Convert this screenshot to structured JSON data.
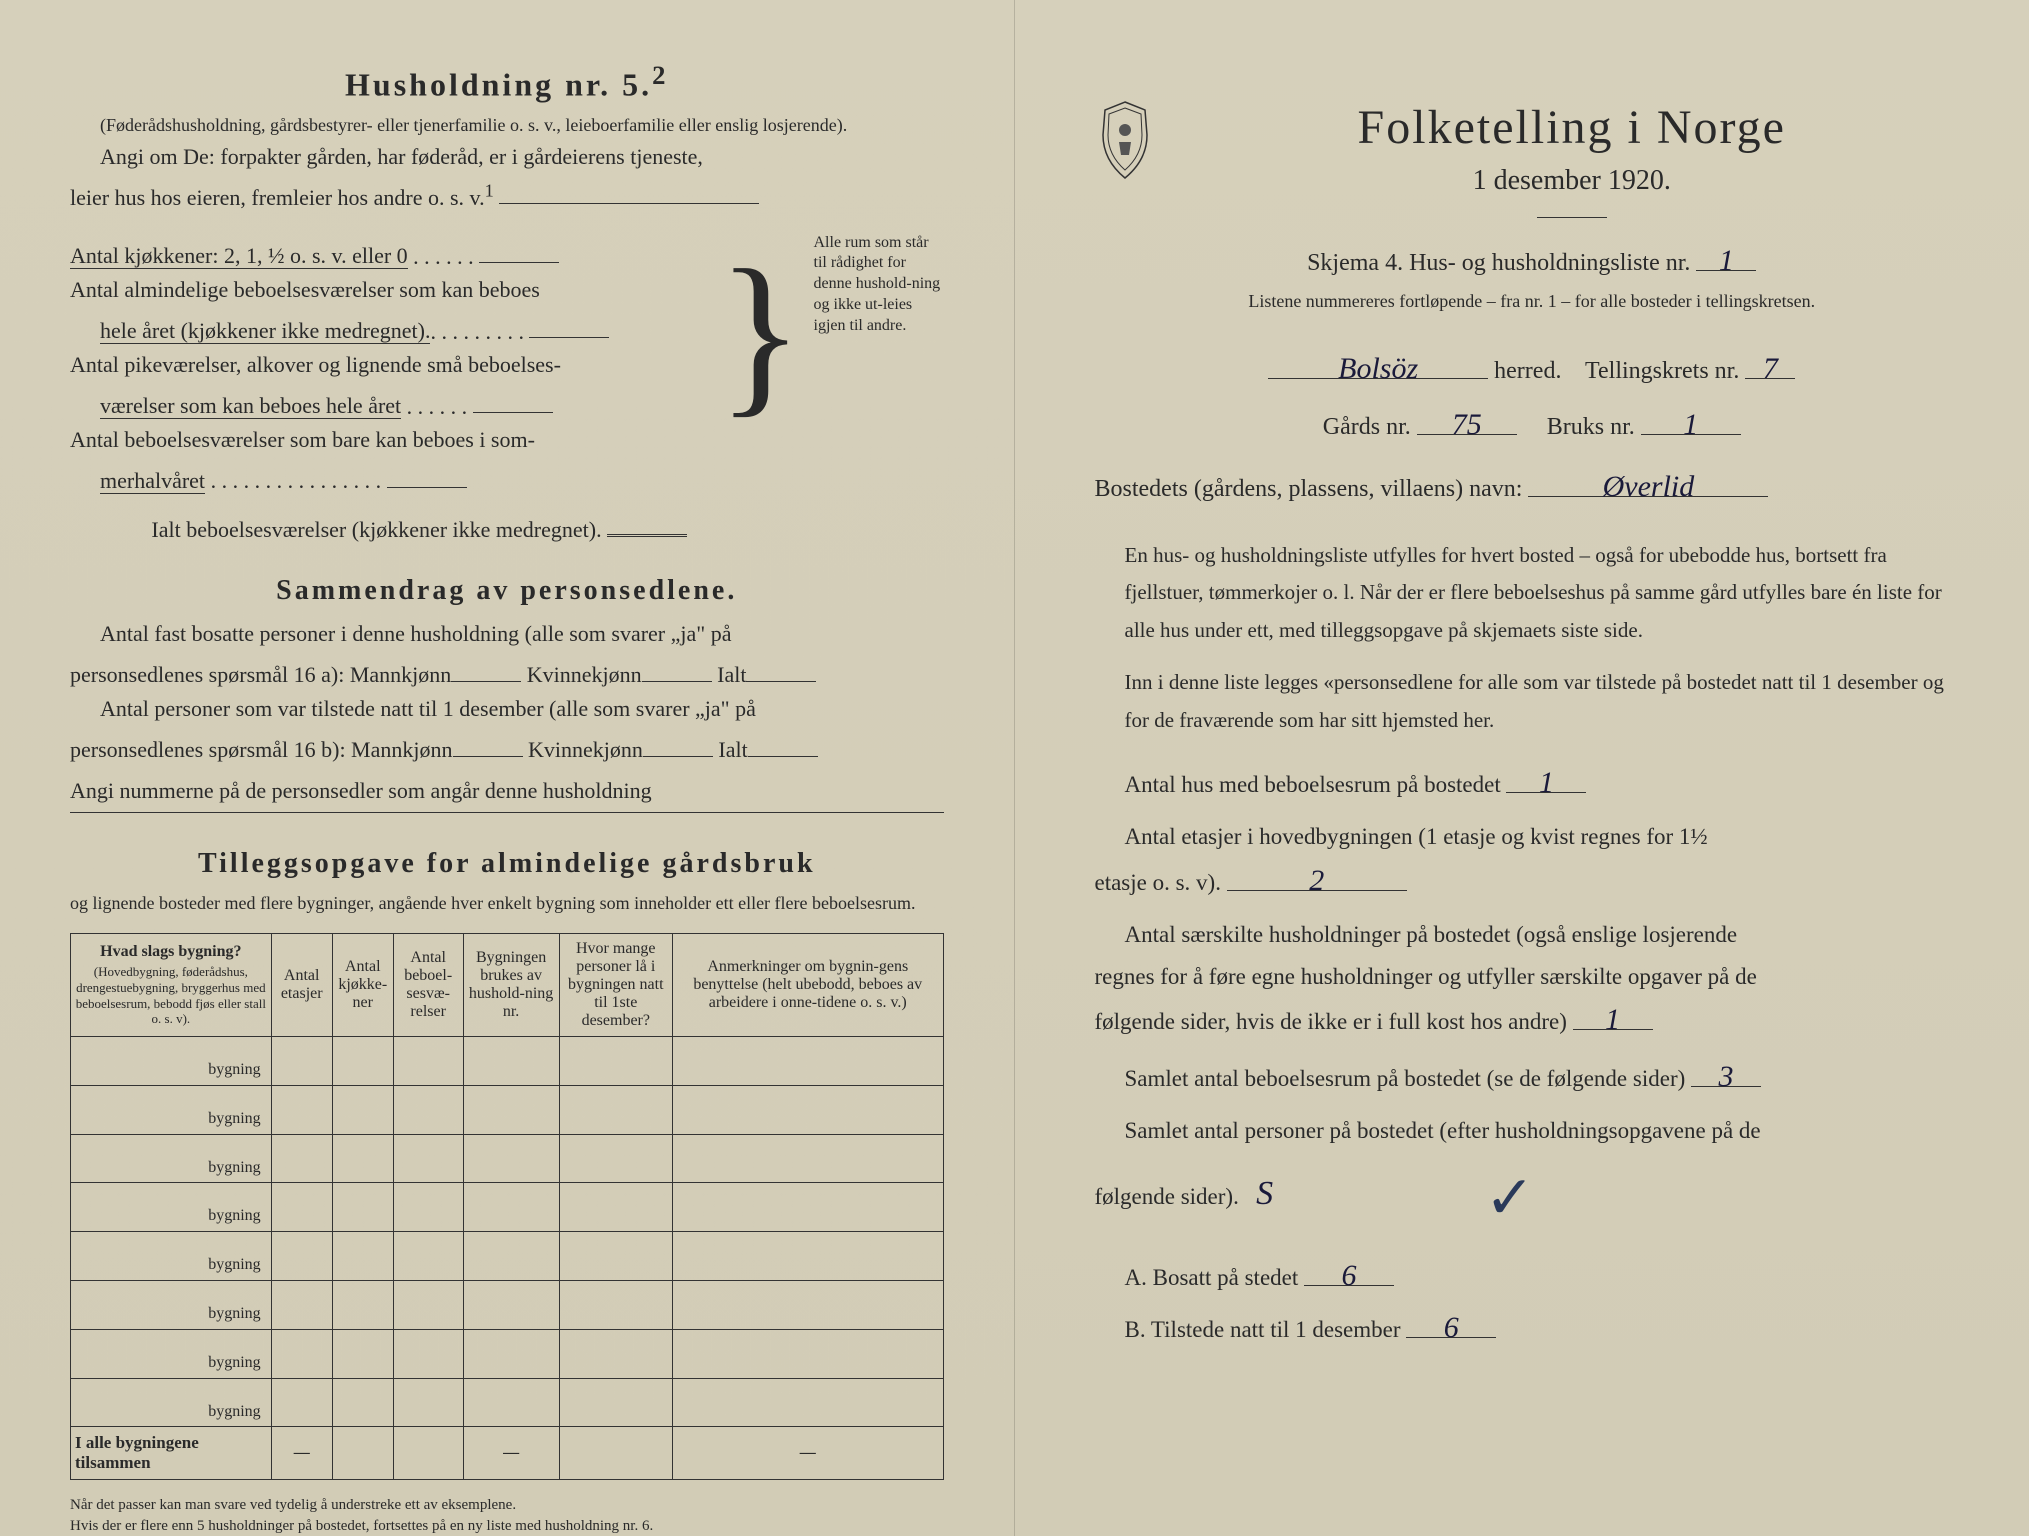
{
  "left": {
    "household_title": "Husholdning nr. 5.",
    "household_sup": "2",
    "household_note": "(Føderådshusholdning, gårdsbestyrer- eller tjenerfamilie o. s. v., leieboerfamilie eller enslig losjerende).",
    "angi_line1": "Angi om De: forpakter gården, har føderåd, er i gårdeierens tjeneste,",
    "angi_line2": "leier hus hos eieren, fremleier hos andre o. s. v.",
    "angi_sup": "1",
    "kjokken_line": "Antal kjøkkener: 2, 1, ½ o. s. v. eller 0",
    "bebo1a": "Antal almindelige beboelsesværelser som kan beboes",
    "bebo1b": "hele året (kjøkkener ikke medregnet).",
    "bebo2a": "Antal pikeværelser, alkover og lignende små beboelses-",
    "bebo2b": "værelser som kan beboes hele året",
    "bebo3a": "Antal beboelsesværelser som bare kan beboes i som-",
    "bebo3b": "merhalvåret",
    "ialt_line": "Ialt beboelsesværelser (kjøkkener ikke medregnet).",
    "rightnote": "Alle rum som står til rådighet for denne hushold-ning og ikke ut-leies igjen til andre.",
    "sammendrag_title": "Sammendrag av personsedlene.",
    "sd_l1": "Antal fast bosatte personer i denne husholdning (alle som svarer „ja\" på",
    "sd_l2a": "personsedlenes spørsmål 16 a): Mannkjønn",
    "sd_l2b": "Kvinnekjønn",
    "sd_l2c": "Ialt",
    "sd_l3": "Antal personer som var tilstede natt til 1 desember (alle som svarer „ja\" på",
    "sd_l4a": "personsedlenes spørsmål 16 b): Mannkjønn",
    "sd_angi": "Angi nummerne på de personsedler som angår denne husholdning",
    "tillegg_title": "Tilleggsopgave for almindelige gårdsbruk",
    "tillegg_sub": "og lignende bosteder med flere bygninger, angående hver enkelt bygning som inneholder ett eller flere beboelsesrum.",
    "th1a": "Hvad slags bygning?",
    "th1b": "(Hovedbygning, føderådshus, drengestuebygning, bryggerhus med beboelsesrum, bebodd fjøs eller stall o. s. v).",
    "th2": "Antal etasjer",
    "th3": "Antal kjøkke-ner",
    "th4": "Antal beboel-sesvæ-relser",
    "th5": "Bygningen brukes av hushold-ning nr.",
    "th6": "Hvor mange personer lå i bygningen natt til 1ste desember?",
    "th7": "Anmerkninger om bygnin-gens benyttelse (helt ubebodd, beboes av arbeidere i onne-tidene o. s. v.)",
    "rowlabel": "bygning",
    "totalrow": "I alle bygningene tilsammen",
    "footnote1": "Når det passer kan man svare ved tydelig å understreke ett av eksemplene.",
    "footnote2": "Hvis der er flere enn 5 husholdninger på bostedet, fortsettes på en ny liste med husholdning nr. 6."
  },
  "right": {
    "main_title": "Folketelling i Norge",
    "date_line": "1 desember 1920.",
    "skjema": "Skjema 4. Hus- og husholdningsliste nr.",
    "skjema_val": "1",
    "listene": "Listene nummereres fortløpende – fra nr. 1 – for alle bosteder i tellingskretsen.",
    "herred_val": "Bolsöz",
    "herred_lbl": "herred.",
    "tellingskrets_lbl": "Tellingskrets nr.",
    "tellingskrets_val": "7",
    "gards_lbl": "Gårds nr.",
    "gards_val": "75",
    "bruks_lbl": "Bruks nr.",
    "bruks_val": "1",
    "bostedets_lbl": "Bostedets (gårdens, plassens, villaens) navn:",
    "bostedets_val": "Øverlid",
    "para1": "En hus- og husholdningsliste utfylles for hvert bosted – også for ubebodde hus, bortsett fra fjellstuer, tømmerkojer o. l. Når der er flere beboelseshus på samme gård utfylles bare én liste for alle hus under ett, med tilleggsopgave på skjemaets siste side.",
    "para2": "Inn i denne liste legges «personsedlene for alle som var tilstede på bostedet natt til 1 desember og for de fraværende som har sitt hjemsted her.",
    "antal_hus_lbl": "Antal hus med beboelsesrum på bostedet",
    "antal_hus_val": "1",
    "etasjer_l1": "Antal etasjer i hovedbygningen (1 etasje og kvist regnes for 1½",
    "etasjer_l2": "etasje o. s. v).",
    "etasjer_val": "2",
    "saer_l1": "Antal særskilte husholdninger på bostedet (også enslige losjerende",
    "saer_l2": "regnes for å føre egne husholdninger og utfyller særskilte opgaver på de",
    "saer_l3": "følgende sider, hvis de ikke er i full kost hos andre)",
    "saer_val": "1",
    "samlet_rum_lbl": "Samlet antal beboelsesrum på bostedet (se de følgende sider)",
    "samlet_rum_val": "3",
    "samlet_pers_l1": "Samlet antal personer på bostedet (efter husholdningsopgavene på de",
    "samlet_pers_l2": "følgende sider).",
    "samlet_pers_mark": "S",
    "a_lbl": "A. Bosatt på stedet",
    "a_val": "6",
    "b_lbl": "B. Tilstede natt til 1 desember",
    "b_val": "6"
  },
  "colors": {
    "paper": "#d4cdb8",
    "ink": "#2a2a2a",
    "handwriting": "#1a1a3a"
  }
}
